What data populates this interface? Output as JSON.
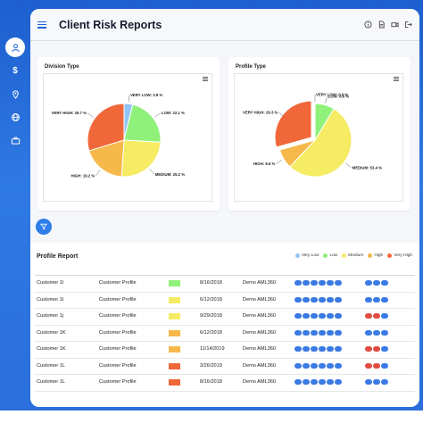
{
  "app": {
    "title": "Client Risk Reports"
  },
  "sidebar": {
    "items": [
      {
        "name": "users",
        "icon": "users-icon",
        "active": true
      },
      {
        "name": "finance",
        "icon": "dollar-icon",
        "glyph": "$"
      },
      {
        "name": "location",
        "icon": "location-pin-icon"
      },
      {
        "name": "globe",
        "icon": "globe-icon"
      },
      {
        "name": "briefcase",
        "icon": "briefcase-icon"
      }
    ]
  },
  "header_icons": [
    "info-icon",
    "document-icon",
    "video-icon",
    "logout-icon"
  ],
  "charts": {
    "division": {
      "title": "Division Type"
    },
    "profile": {
      "title": "Profile Type"
    }
  },
  "chart_data": [
    {
      "type": "pie",
      "title": "Division Type",
      "slices": [
        {
          "label": "VERY LOW",
          "value": 3.8,
          "color": "#90c4f5",
          "display": "VERY LOW: 3.8 %"
        },
        {
          "label": "LOW",
          "value": 22.1,
          "color": "#8ff07a",
          "display": "LOW: 22.1 %"
        },
        {
          "label": "MEDIUM",
          "value": 25.2,
          "color": "#f5ec64",
          "display": "MEDIUM: 25.2 %"
        },
        {
          "label": "HIGH",
          "value": 19.2,
          "color": "#f6b84a",
          "display": "HIGH: 19.2 %"
        },
        {
          "label": "VERY HIGH",
          "value": 29.7,
          "color": "#f0683a",
          "display": "VERY HIGH: 29.7 %"
        }
      ]
    },
    {
      "type": "pie",
      "title": "Profile Type",
      "slices": [
        {
          "label": "VERY LOW",
          "value": 0.0,
          "color": "#90c4f5",
          "display": "VERY LOW: 0.0 %"
        },
        {
          "label": "LOW",
          "value": 8.6,
          "color": "#8ff07a",
          "display": "LOW: 8.6 %"
        },
        {
          "label": "MEDIUM",
          "value": 53.4,
          "color": "#f5ec64",
          "display": "MEDIUM: 53.4 %"
        },
        {
          "label": "HIGH",
          "value": 8.6,
          "color": "#f6b84a",
          "display": "HIGH: 8.6 %"
        },
        {
          "label": "VERY HIGH",
          "value": 29.3,
          "color": "#f0683a",
          "display": "VERY HIGH: 29.3 %",
          "exploded": true
        }
      ]
    }
  ],
  "report": {
    "title": "Profile Report",
    "legend": [
      {
        "label": "Very Low",
        "color": "#90c4f5"
      },
      {
        "label": "Low",
        "color": "#8ff07a"
      },
      {
        "label": "Medium",
        "color": "#f5ec64"
      },
      {
        "label": "High",
        "color": "#f6b84a"
      },
      {
        "label": "Very High",
        "color": "#f0683a"
      }
    ],
    "rows": [
      {
        "customer": "Customer 1I",
        "profile": "Customer Profile",
        "risk_color": "#8ff07a",
        "date": "8/16/2018",
        "demo": "Demo AML360",
        "red_pill": false
      },
      {
        "customer": "Customer 1I",
        "profile": "Customer Profile",
        "risk_color": "#f5ec64",
        "date": "6/12/2018",
        "demo": "Demo AML360",
        "red_pill": false
      },
      {
        "customer": "Customer 1j",
        "profile": "Customer Profile",
        "risk_color": "#f5ec64",
        "date": "9/29/2018",
        "demo": "Demo AML360",
        "red_pill": true
      },
      {
        "customer": "Customer 1K",
        "profile": "Customer Profile",
        "risk_color": "#f6b84a",
        "date": "6/12/2018",
        "demo": "Demo AML360",
        "red_pill": false
      },
      {
        "customer": "Customer 1K",
        "profile": "Customer Profile",
        "risk_color": "#f6b84a",
        "date": "11/14/2019",
        "demo": "Demo AML360",
        "red_pill": true
      },
      {
        "customer": "Customer 1L",
        "profile": "Customer Profile",
        "risk_color": "#f0683a",
        "date": "3/26/2019",
        "demo": "Demo AML360",
        "red_pill": true
      },
      {
        "customer": "Customer 1L",
        "profile": "Customer Profile",
        "risk_color": "#f0683a",
        "date": "8/16/2018",
        "demo": "Demo AML360",
        "red_pill": false
      }
    ]
  }
}
